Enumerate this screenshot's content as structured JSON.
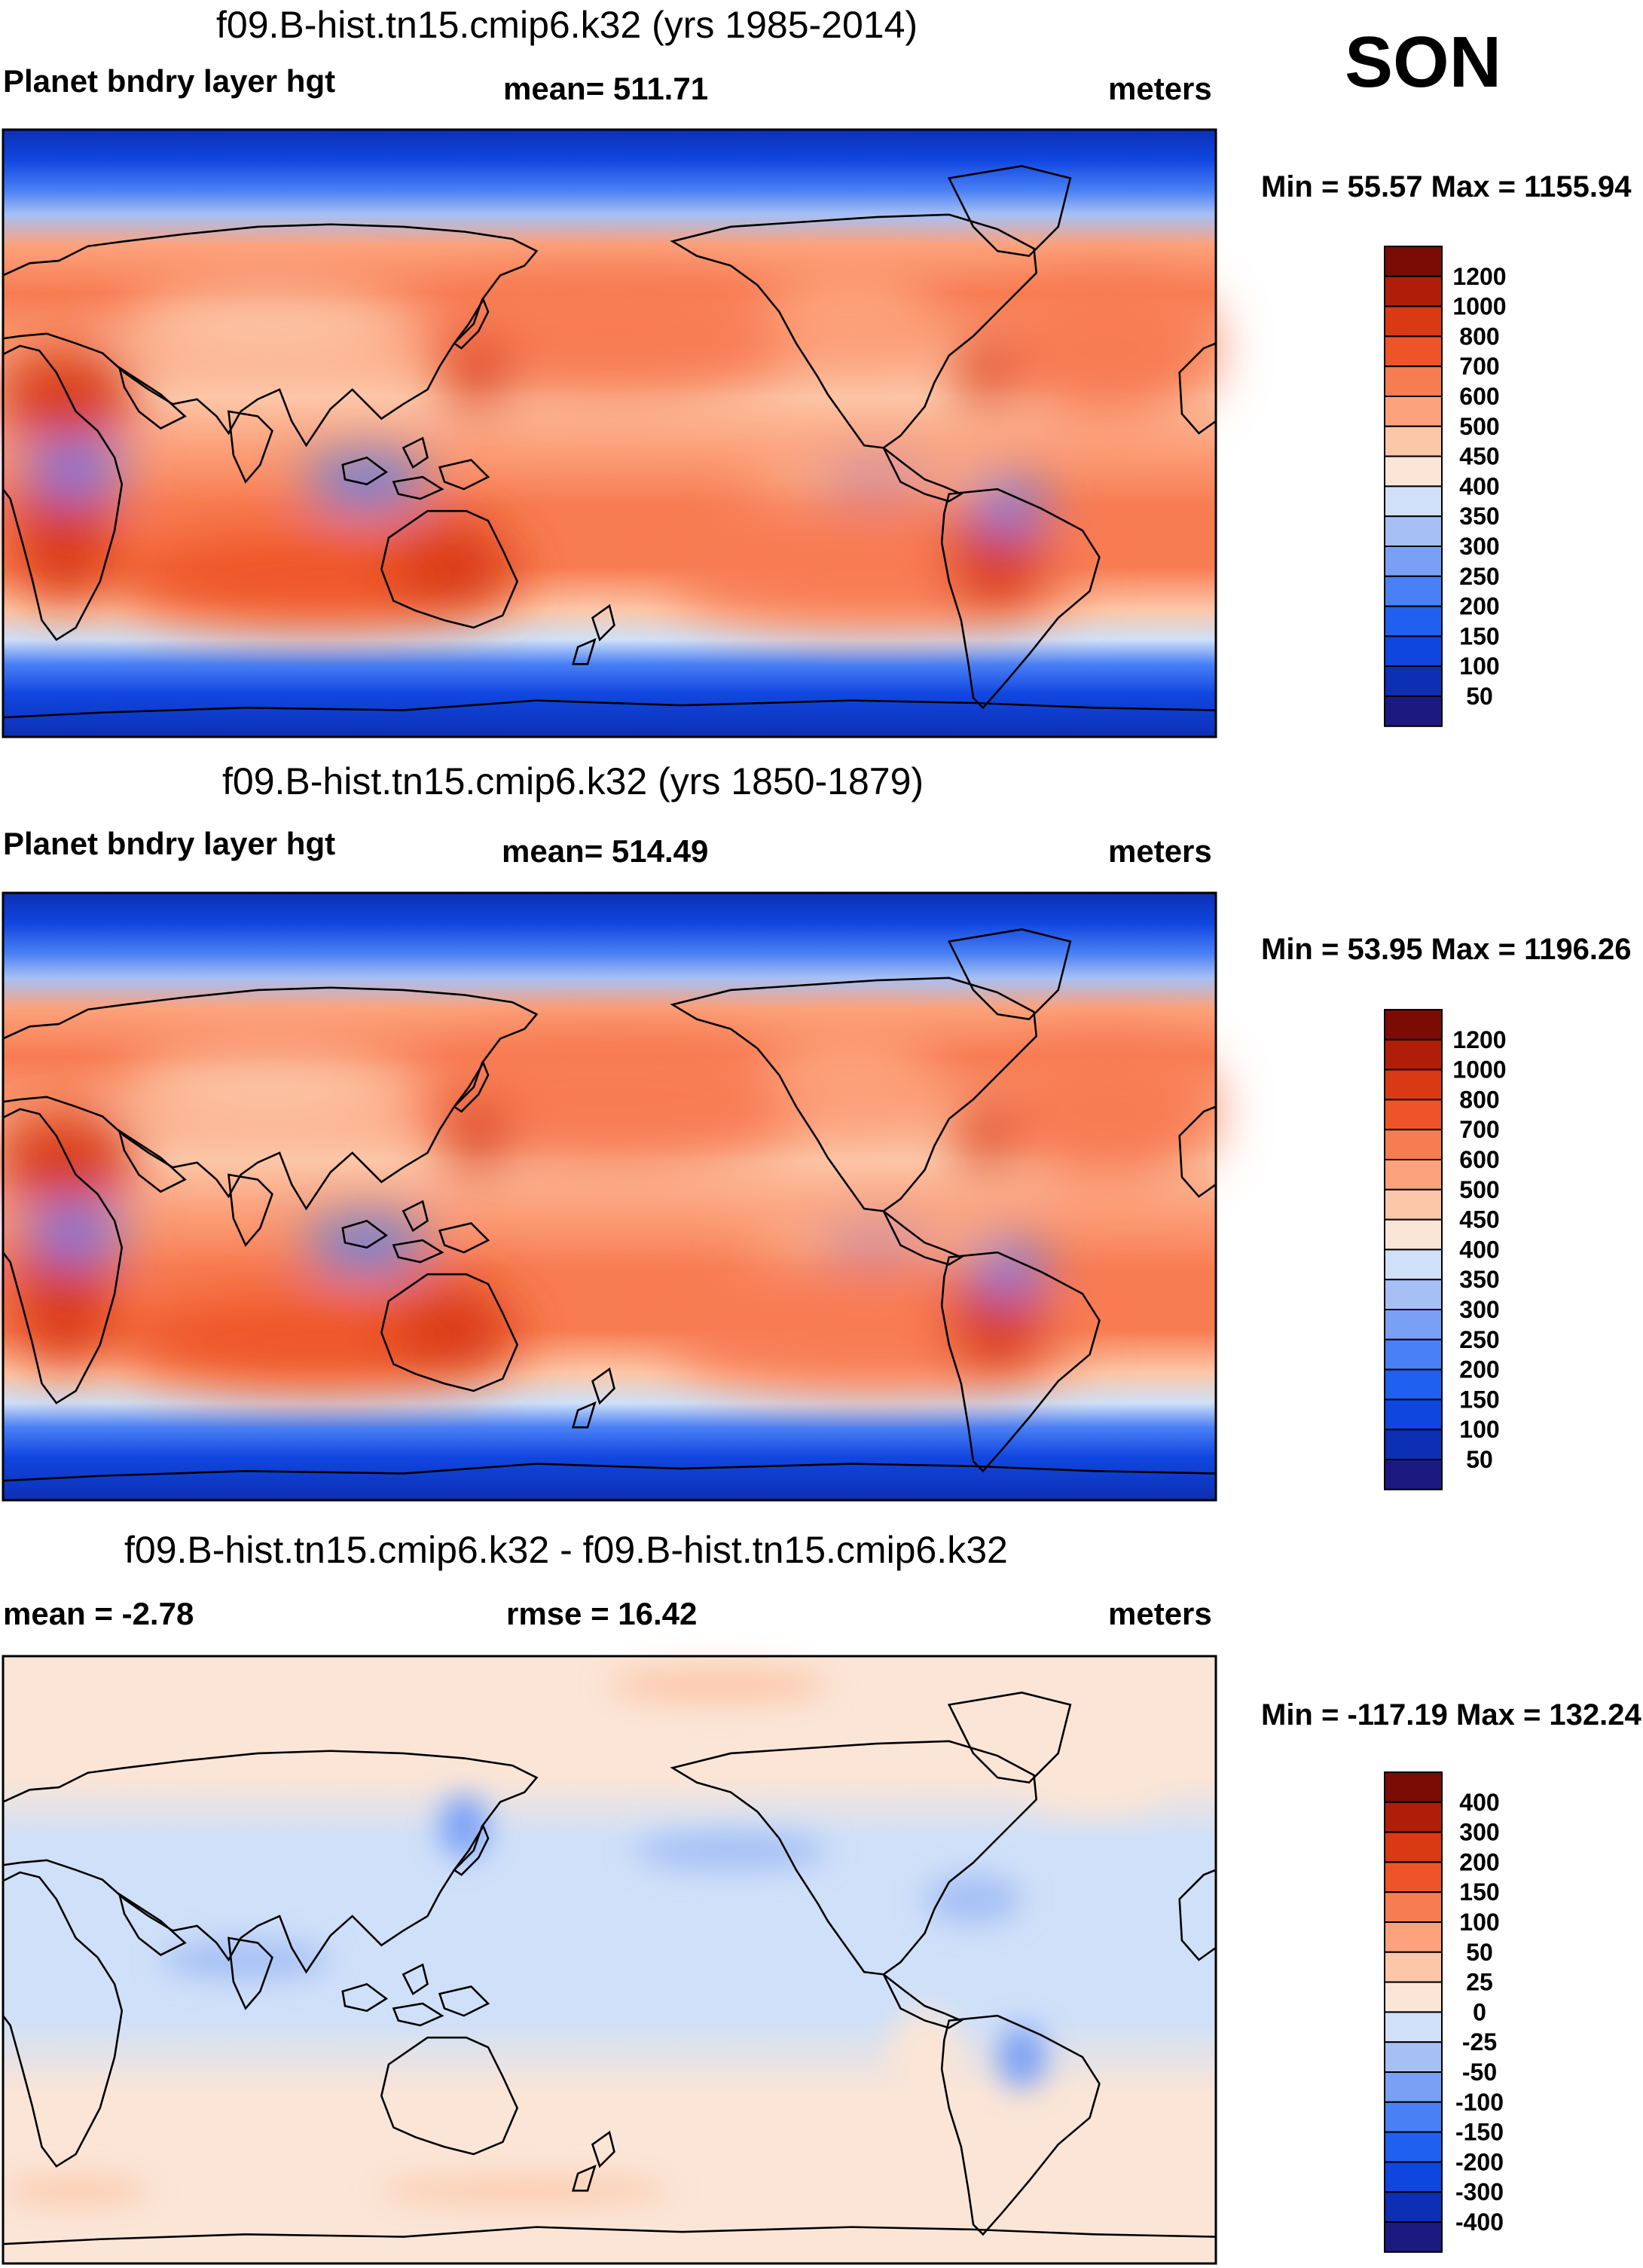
{
  "season": "SON",
  "colors": {
    "div": [
      "#1a1a80",
      "#0d2fb3",
      "#1046e0",
      "#2060f0",
      "#4a80f5",
      "#7aa0f5",
      "#a6c0f5",
      "#cfe0f8",
      "#fbe5d6",
      "#fcc7a8",
      "#fca27c",
      "#f87c52",
      "#ee5428",
      "#d93a14",
      "#b01e0a",
      "#7a0c05"
    ],
    "land": "#d96030",
    "coast": "#000000"
  },
  "icons": [
    "coastline-map"
  ],
  "chart_data": [
    {
      "type": "heatmap",
      "title": "f09.B-hist.tn15.cmip6.k32 (yrs 1985-2014)",
      "left_label": "Planet bndry layer hgt",
      "center_label": "mean= 511.71",
      "right_label": "meters",
      "variable": "Planet bndry layer hgt",
      "units": "meters",
      "mean": 511.71,
      "min": 55.57,
      "max": 1155.94,
      "minmax_text": "Min =  55.57 Max = 1155.94",
      "colorbar_levels": [
        "1200",
        "1000",
        "800",
        "700",
        "600",
        "500",
        "450",
        "400",
        "350",
        "300",
        "250",
        "200",
        "150",
        "100",
        "50"
      ]
    },
    {
      "type": "heatmap",
      "title": "f09.B-hist.tn15.cmip6.k32 (yrs 1850-1879)",
      "left_label": "Planet bndry layer hgt",
      "center_label": "mean= 514.49",
      "right_label": "meters",
      "variable": "Planet bndry layer hgt",
      "units": "meters",
      "mean": 514.49,
      "min": 53.95,
      "max": 1196.26,
      "minmax_text": "Min =  53.95 Max = 1196.26",
      "colorbar_levels": [
        "1200",
        "1000",
        "800",
        "700",
        "600",
        "500",
        "450",
        "400",
        "350",
        "300",
        "250",
        "200",
        "150",
        "100",
        "50"
      ]
    },
    {
      "type": "heatmap",
      "title": "f09.B-hist.tn15.cmip6.k32 - f09.B-hist.tn15.cmip6.k32",
      "left_label": "mean =  -2.78",
      "center_label": "rmse =  16.42",
      "right_label": "meters",
      "units": "meters",
      "mean": -2.78,
      "rmse": 16.42,
      "min": -117.19,
      "max": 132.24,
      "minmax_text": "Min = -117.19 Max = 132.24",
      "colorbar_levels": [
        "400",
        "300",
        "200",
        "150",
        "100",
        "50",
        "25",
        "0",
        "-25",
        "-50",
        "-100",
        "-150",
        "-200",
        "-300",
        "-400"
      ]
    }
  ]
}
